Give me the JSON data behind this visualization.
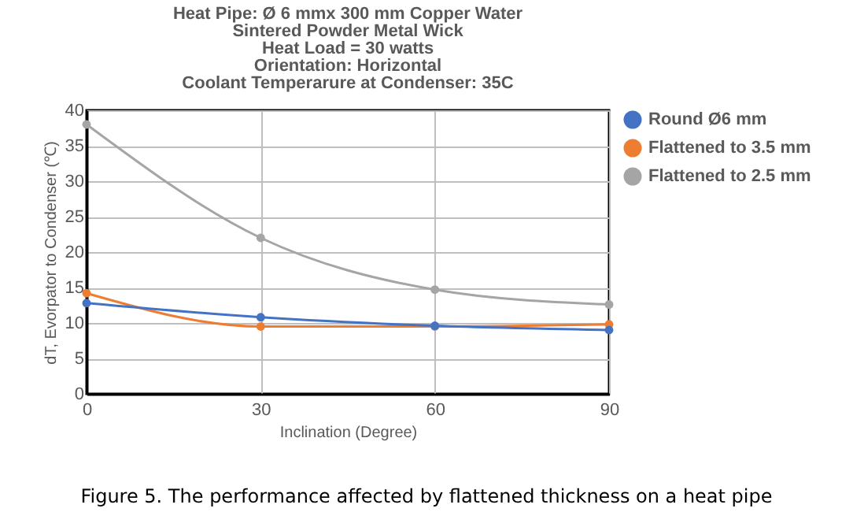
{
  "chart_data": {
    "type": "line",
    "title": [
      "Heat Pipe: Ø 6 mmx 300 mm Copper Water",
      "Sintered Powder Metal Wick",
      "Heat Load = 30 watts",
      "Orientation: Horizontal",
      "Coolant Temperarure at Condenser: 35C"
    ],
    "xlabel": "Inclination (Degree)",
    "ylabel": "dT, Evorpator to Condenser (℃)",
    "x": [
      0,
      30,
      60,
      90
    ],
    "series": [
      {
        "name": "Round Ø6 mm",
        "color": "#4472c4",
        "values": [
          12.8,
          10.8,
          9.6,
          9.0
        ]
      },
      {
        "name": "Flattened to 3.5 mm",
        "color": "#ed7d31",
        "values": [
          14.2,
          9.5,
          9.5,
          9.8
        ]
      },
      {
        "name": "Flattened to 2.5 mm",
        "color": "#a5a5a5",
        "values": [
          38,
          22,
          14.7,
          12.6
        ]
      }
    ],
    "xlim": [
      0,
      90
    ],
    "xticks": [
      0,
      30,
      60,
      90
    ],
    "ylim": [
      0,
      40
    ],
    "yticks": [
      0,
      5,
      10,
      15,
      20,
      25,
      30,
      35,
      40
    ],
    "grid": true,
    "legend": "right",
    "marker": "circle",
    "annotations": [
      "Figure 5. The performance affected by flattened thickness on a heat pipe"
    ]
  }
}
